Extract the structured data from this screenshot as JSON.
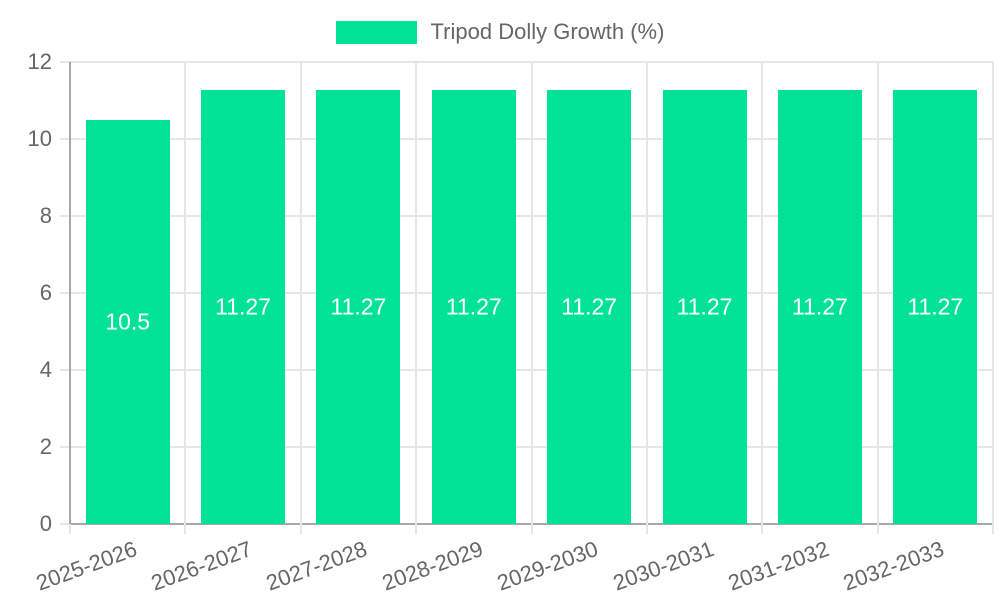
{
  "page": {
    "background": "#ffffff"
  },
  "legend": {
    "label": "Tripod Dolly Growth (%)",
    "swatch_color": "#00E396",
    "position": "top-center"
  },
  "chart_data": {
    "type": "bar",
    "title": "",
    "xlabel": "",
    "ylabel": "",
    "categories": [
      "2025-2026",
      "2026-2027",
      "2027-2028",
      "2028-2029",
      "2029-2030",
      "2030-2031",
      "2031-2032",
      "2032-2033"
    ],
    "series": [
      {
        "name": "Tripod Dolly Growth (%)",
        "values": [
          10.5,
          11.27,
          11.27,
          11.27,
          11.27,
          11.27,
          11.27,
          11.27
        ],
        "value_labels": [
          "10.5",
          "11.27",
          "11.27",
          "11.27",
          "11.27",
          "11.27",
          "11.27",
          "11.27"
        ],
        "color": "#00E396"
      }
    ],
    "ylim": [
      0,
      12
    ],
    "y_ticks": [
      0,
      2,
      4,
      6,
      8,
      10,
      12
    ],
    "y_tick_labels": [
      "0",
      "2",
      "4",
      "6",
      "8",
      "10",
      "12"
    ],
    "grid": true,
    "legend_position": "top",
    "x_label_rotation_deg": -20,
    "colors": {
      "bar": "#00E396",
      "bar_label_text": "#ffffff",
      "axis_text": "#666666",
      "gridline": "#e6e6e6",
      "axis_line": "#a8a8a8"
    }
  }
}
